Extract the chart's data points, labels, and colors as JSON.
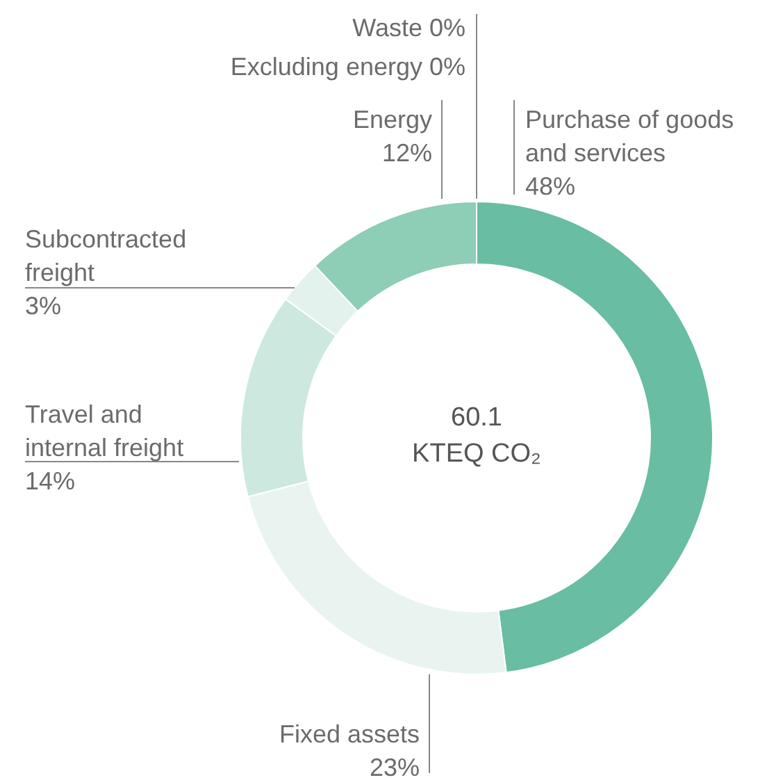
{
  "chart_data": {
    "type": "donut",
    "categories": [
      "Purchase of goods and services",
      "Fixed assets",
      "Travel and internal freight",
      "Subcontracted freight",
      "Energy",
      "Waste",
      "Excluding energy"
    ],
    "values": [
      48,
      23,
      14,
      3,
      12,
      0,
      0
    ],
    "colors": [
      "#68bda3",
      "#e9f4f0",
      "#cde8de",
      "#e3f2ec",
      "#8ecdb6",
      "#68bda3",
      "#68bda3"
    ],
    "value_labels": [
      "48%",
      "23%",
      "14%",
      "3%",
      "12%",
      "0%",
      "0%"
    ],
    "annotations": [
      "60.1",
      "KTEQ CO₂"
    ]
  }
}
